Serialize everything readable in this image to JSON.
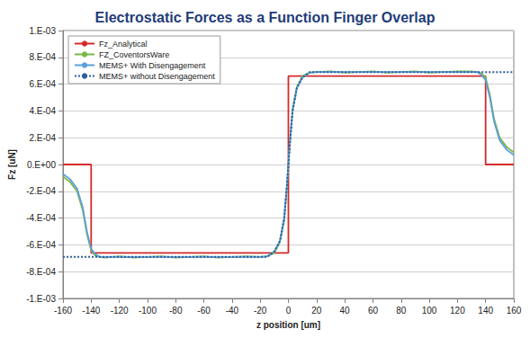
{
  "chart_data": {
    "type": "line",
    "title": "Electrostatic Forces as a Function Finger Overlap",
    "x_label": "z position [um]",
    "y_label": "Fz [uN]",
    "xlim": [
      -160,
      160
    ],
    "xticks": [
      -160,
      -140,
      -120,
      -100,
      -80,
      -60,
      -40,
      -20,
      0,
      20,
      40,
      60,
      80,
      100,
      120,
      140,
      160
    ],
    "ylim": [
      -0.001,
      0.001
    ],
    "yticks": [
      {
        "value": -0.001,
        "label": "-1.E-03"
      },
      {
        "value": -0.0008,
        "label": "-8.E-04"
      },
      {
        "value": -0.0006,
        "label": "-6.E-04"
      },
      {
        "value": -0.0004,
        "label": "-4.E-04"
      },
      {
        "value": -0.0002,
        "label": "-2.E-04"
      },
      {
        "value": 0,
        "label": "0.E+00"
      },
      {
        "value": 0.0002,
        "label": "2.E-04"
      },
      {
        "value": 0.0004,
        "label": "4.E-04"
      },
      {
        "value": 0.0006,
        "label": "6.E-04"
      },
      {
        "value": 0.0008,
        "label": "8.E-04"
      },
      {
        "value": 0.001,
        "label": "1.E-03"
      }
    ],
    "grid": true,
    "legend": "upper left",
    "series": [
      {
        "name": "Fz_Analytical",
        "color": "#d42a2a",
        "line_style": "solid",
        "marker": "none",
        "x": [
          -160,
          -140,
          -140,
          0,
          0,
          140,
          140,
          160
        ],
        "values": [
          0,
          0,
          -0.00066,
          -0.00066,
          0.00066,
          0.00066,
          0,
          0
        ]
      },
      {
        "name": "FZ_CoventorsWare",
        "color": "#7ab648",
        "line_style": "solid",
        "marker": "none",
        "x": [
          -160,
          -155,
          -150,
          -146,
          -143,
          -140,
          -137,
          -134,
          -130,
          -120,
          -110,
          -100,
          -90,
          -80,
          -70,
          -60,
          -50,
          -40,
          -30,
          -20,
          -15,
          -10,
          -6,
          -3,
          -1,
          0,
          1,
          3,
          6,
          10,
          15,
          20,
          30,
          40,
          50,
          60,
          70,
          80,
          90,
          100,
          110,
          120,
          130,
          134,
          137,
          140,
          143,
          146,
          150,
          155,
          160
        ],
        "values": [
          -9e-05,
          -0.00013,
          -0.0002,
          -0.00034,
          -0.00052,
          -0.00064,
          -0.00068,
          -0.00069,
          -0.000695,
          -0.000685,
          -0.000695,
          -0.00069,
          -0.000685,
          -0.000695,
          -0.00069,
          -0.000685,
          -0.000695,
          -0.00069,
          -0.000685,
          -0.00069,
          -0.000685,
          -0.00066,
          -0.00058,
          -0.00042,
          -0.00016,
          0,
          0.00016,
          0.00042,
          0.00058,
          0.00066,
          0.000685,
          0.00069,
          0.000695,
          0.000685,
          0.00069,
          0.000695,
          0.000685,
          0.00069,
          0.000695,
          0.000685,
          0.00069,
          0.000695,
          0.000695,
          0.00069,
          0.00068,
          0.00065,
          0.00052,
          0.00034,
          0.0002,
          0.00013,
          9e-05
        ]
      },
      {
        "name": "MEMS+ With Disengagement",
        "color": "#5aa0dc",
        "line_style": "solid",
        "marker": "none",
        "x": [
          -160,
          -155,
          -150,
          -146,
          -143,
          -140,
          -137,
          -134,
          -130,
          -120,
          -110,
          -100,
          -90,
          -80,
          -70,
          -60,
          -50,
          -40,
          -30,
          -20,
          -15,
          -10,
          -6,
          -3,
          -1,
          0,
          1,
          3,
          6,
          10,
          15,
          20,
          30,
          40,
          50,
          60,
          70,
          80,
          90,
          100,
          110,
          120,
          130,
          134,
          137,
          140,
          143,
          146,
          150,
          155,
          160
        ],
        "values": [
          -7e-05,
          -0.00011,
          -0.00018,
          -0.00032,
          -0.0005,
          -0.00063,
          -0.00067,
          -0.00069,
          -0.00069,
          -0.00069,
          -0.00069,
          -0.00069,
          -0.00069,
          -0.00069,
          -0.00069,
          -0.00069,
          -0.00069,
          -0.00069,
          -0.00069,
          -0.00069,
          -0.000685,
          -0.00065,
          -0.00057,
          -0.0004,
          -0.00015,
          0,
          0.00015,
          0.0004,
          0.00057,
          0.00065,
          0.000685,
          0.00069,
          0.00069,
          0.00069,
          0.00069,
          0.00069,
          0.00069,
          0.00069,
          0.00069,
          0.00069,
          0.00069,
          0.00069,
          0.00069,
          0.00069,
          0.00067,
          0.00063,
          0.0005,
          0.00032,
          0.00018,
          0.00011,
          7e-05
        ]
      },
      {
        "name": "MEMS+ without Disengagement",
        "color": "#2f5f9e",
        "line_style": "dotted",
        "marker": "none",
        "x": [
          -160,
          -155,
          -150,
          -146,
          -143,
          -140,
          -137,
          -134,
          -130,
          -120,
          -110,
          -100,
          -90,
          -80,
          -70,
          -60,
          -50,
          -40,
          -30,
          -20,
          -15,
          -10,
          -6,
          -3,
          -1,
          0,
          1,
          3,
          6,
          10,
          15,
          20,
          30,
          40,
          50,
          60,
          70,
          80,
          90,
          100,
          110,
          120,
          130,
          134,
          137,
          140,
          143,
          146,
          150,
          155,
          160
        ],
        "values": [
          -0.00069,
          -0.00069,
          -0.00069,
          -0.00069,
          -0.00069,
          -0.00069,
          -0.00069,
          -0.00069,
          -0.00069,
          -0.00069,
          -0.00069,
          -0.00069,
          -0.00069,
          -0.00069,
          -0.00069,
          -0.00069,
          -0.00069,
          -0.00069,
          -0.00069,
          -0.00069,
          -0.00069,
          -0.00065,
          -0.00057,
          -0.0004,
          -0.00015,
          0,
          0.00015,
          0.0004,
          0.00057,
          0.00065,
          0.00069,
          0.00069,
          0.00069,
          0.00069,
          0.00069,
          0.00069,
          0.00069,
          0.00069,
          0.00069,
          0.00069,
          0.00069,
          0.00069,
          0.00069,
          0.00069,
          0.00069,
          0.00069,
          0.00069,
          0.00069,
          0.00069,
          0.00069,
          0.00069
        ]
      }
    ]
  }
}
